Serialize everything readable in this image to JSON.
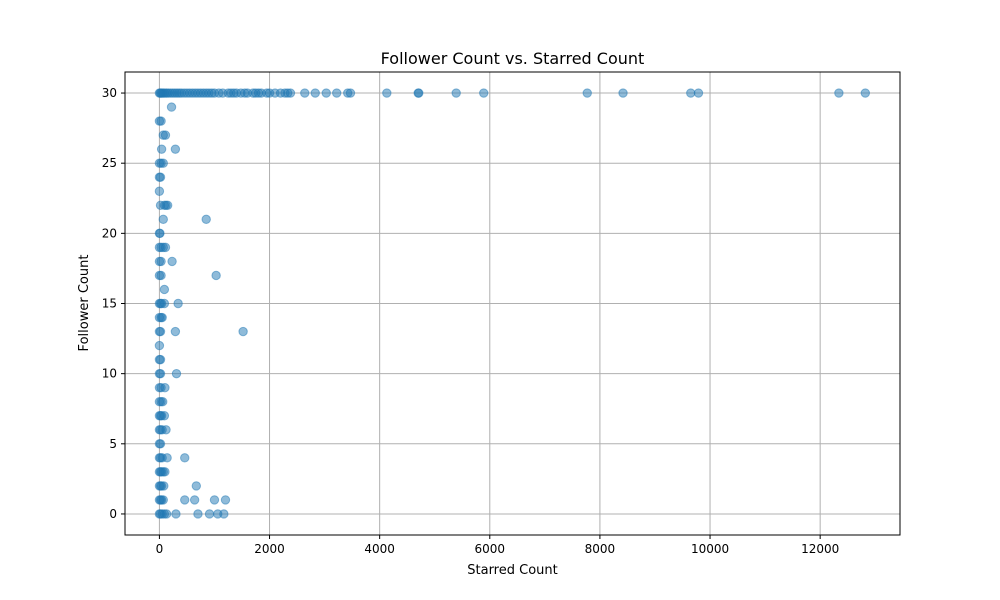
{
  "chart_data": {
    "type": "scatter",
    "title": "Follower Count vs. Starred Count",
    "xlabel": "Starred Count",
    "ylabel": "Follower Count",
    "xlim": [
      -625,
      13450
    ],
    "ylim": [
      -1.5,
      31.5
    ],
    "xticks": [
      0,
      2000,
      4000,
      6000,
      8000,
      10000,
      12000
    ],
    "yticks": [
      0,
      5,
      10,
      15,
      20,
      25,
      30
    ],
    "grid": true,
    "legend": "none",
    "color": "#1f77b4",
    "points": [
      [
        0,
        30
      ],
      [
        15,
        30
      ],
      [
        30,
        30
      ],
      [
        50,
        30
      ],
      [
        75,
        30
      ],
      [
        100,
        30
      ],
      [
        130,
        30
      ],
      [
        160,
        30
      ],
      [
        200,
        30
      ],
      [
        240,
        30
      ],
      [
        280,
        30
      ],
      [
        320,
        30
      ],
      [
        360,
        30
      ],
      [
        400,
        30
      ],
      [
        450,
        30
      ],
      [
        500,
        30
      ],
      [
        550,
        30
      ],
      [
        600,
        30
      ],
      [
        650,
        30
      ],
      [
        700,
        30
      ],
      [
        750,
        30
      ],
      [
        800,
        30
      ],
      [
        850,
        30
      ],
      [
        900,
        30
      ],
      [
        950,
        30
      ],
      [
        1000,
        30
      ],
      [
        1080,
        30
      ],
      [
        1150,
        30
      ],
      [
        1250,
        30
      ],
      [
        1300,
        30
      ],
      [
        1350,
        30
      ],
      [
        1400,
        30
      ],
      [
        1480,
        30
      ],
      [
        1550,
        30
      ],
      [
        1600,
        30
      ],
      [
        1700,
        30
      ],
      [
        1750,
        30
      ],
      [
        1800,
        30
      ],
      [
        1850,
        30
      ],
      [
        1950,
        30
      ],
      [
        2000,
        30
      ],
      [
        2100,
        30
      ],
      [
        2200,
        30
      ],
      [
        2280,
        30
      ],
      [
        2330,
        30
      ],
      [
        2380,
        30
      ],
      [
        2640,
        30
      ],
      [
        2830,
        30
      ],
      [
        3030,
        30
      ],
      [
        3220,
        30
      ],
      [
        3420,
        30
      ],
      [
        3470,
        30
      ],
      [
        4130,
        30
      ],
      [
        4700,
        30
      ],
      [
        4710,
        30
      ],
      [
        5390,
        30
      ],
      [
        5890,
        30
      ],
      [
        7770,
        30
      ],
      [
        8420,
        30
      ],
      [
        9650,
        30
      ],
      [
        9790,
        30
      ],
      [
        12340,
        30
      ],
      [
        12820,
        30
      ],
      [
        220,
        29
      ],
      [
        0,
        28
      ],
      [
        30,
        28
      ],
      [
        70,
        27
      ],
      [
        110,
        27
      ],
      [
        40,
        26
      ],
      [
        290,
        26
      ],
      [
        0,
        25
      ],
      [
        30,
        25
      ],
      [
        70,
        25
      ],
      [
        0,
        24
      ],
      [
        20,
        24
      ],
      [
        0,
        23
      ],
      [
        20,
        22
      ],
      [
        90,
        22
      ],
      [
        120,
        22
      ],
      [
        150,
        22
      ],
      [
        70,
        21
      ],
      [
        850,
        21
      ],
      [
        0,
        20
      ],
      [
        10,
        20
      ],
      [
        0,
        19
      ],
      [
        30,
        19
      ],
      [
        70,
        19
      ],
      [
        110,
        19
      ],
      [
        0,
        18
      ],
      [
        30,
        18
      ],
      [
        230,
        18
      ],
      [
        0,
        17
      ],
      [
        30,
        17
      ],
      [
        1030,
        17
      ],
      [
        90,
        16
      ],
      [
        0,
        15
      ],
      [
        20,
        15
      ],
      [
        40,
        15
      ],
      [
        90,
        15
      ],
      [
        340,
        15
      ],
      [
        0,
        14
      ],
      [
        30,
        14
      ],
      [
        50,
        14
      ],
      [
        0,
        13
      ],
      [
        20,
        13
      ],
      [
        290,
        13
      ],
      [
        1520,
        13
      ],
      [
        0,
        12
      ],
      [
        0,
        11
      ],
      [
        20,
        11
      ],
      [
        0,
        10
      ],
      [
        20,
        10
      ],
      [
        310,
        10
      ],
      [
        0,
        9
      ],
      [
        30,
        9
      ],
      [
        100,
        9
      ],
      [
        0,
        8
      ],
      [
        30,
        8
      ],
      [
        60,
        8
      ],
      [
        0,
        7
      ],
      [
        20,
        7
      ],
      [
        40,
        7
      ],
      [
        90,
        7
      ],
      [
        0,
        6
      ],
      [
        20,
        6
      ],
      [
        50,
        6
      ],
      [
        120,
        6
      ],
      [
        0,
        5
      ],
      [
        20,
        5
      ],
      [
        0,
        4
      ],
      [
        20,
        4
      ],
      [
        50,
        4
      ],
      [
        140,
        4
      ],
      [
        460,
        4
      ],
      [
        0,
        3
      ],
      [
        20,
        3
      ],
      [
        40,
        3
      ],
      [
        70,
        3
      ],
      [
        100,
        3
      ],
      [
        0,
        2
      ],
      [
        20,
        2
      ],
      [
        40,
        2
      ],
      [
        80,
        2
      ],
      [
        670,
        2
      ],
      [
        0,
        1
      ],
      [
        20,
        1
      ],
      [
        40,
        1
      ],
      [
        70,
        1
      ],
      [
        460,
        1
      ],
      [
        640,
        1
      ],
      [
        1000,
        1
      ],
      [
        1200,
        1
      ],
      [
        0,
        0
      ],
      [
        20,
        0
      ],
      [
        50,
        0
      ],
      [
        90,
        0
      ],
      [
        130,
        0
      ],
      [
        300,
        0
      ],
      [
        700,
        0
      ],
      [
        910,
        0
      ],
      [
        1060,
        0
      ],
      [
        1170,
        0
      ]
    ]
  }
}
